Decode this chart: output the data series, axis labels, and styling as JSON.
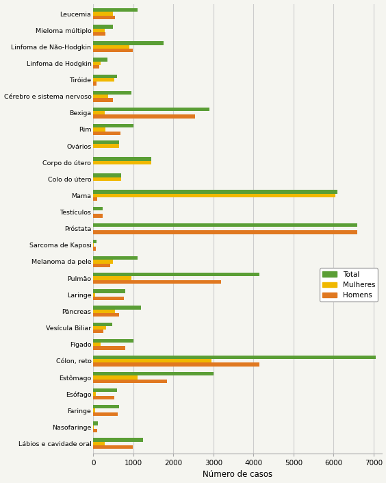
{
  "categories": [
    "Lábios e cavidade oral",
    "Nasofaringe",
    "Faringe",
    "Esófago",
    "Estômago",
    "Cólon, reto",
    "Fígado",
    "Vesícula Biliar",
    "Pâncreas",
    "Laringe",
    "Pulmão",
    "Melanoma da pele",
    "Sarcoma de Kaposi",
    "Próstata",
    "Testículos",
    "Mama",
    "Colo do útero",
    "Corpo do útero",
    "Ovários",
    "Rim",
    "Bexiga",
    "Cérebro e sistema nervoso",
    "Tiróide",
    "Linfoma de Hodgkin",
    "Linfoma de Não-Hodgkin",
    "Mieloma múltiplo",
    "Leucemia"
  ],
  "total": [
    1250,
    120,
    650,
    600,
    3000,
    7050,
    1000,
    480,
    1200,
    800,
    4150,
    1100,
    80,
    6600,
    230,
    6100,
    700,
    1450,
    650,
    1000,
    2900,
    950,
    600,
    350,
    1750,
    500,
    1100
  ],
  "mulheres": [
    280,
    20,
    50,
    60,
    1100,
    2950,
    180,
    320,
    550,
    50,
    950,
    500,
    20,
    0,
    0,
    6050,
    700,
    1450,
    650,
    300,
    280,
    380,
    530,
    180,
    900,
    280,
    500
  ],
  "homens": [
    980,
    100,
    620,
    530,
    1850,
    4150,
    800,
    260,
    650,
    760,
    3200,
    430,
    60,
    6600,
    230,
    100,
    0,
    0,
    0,
    680,
    2550,
    490,
    80,
    150,
    980,
    300,
    550
  ],
  "color_total": "#5a9e35",
  "color_mulheres": "#f0b800",
  "color_homens": "#e07820",
  "xlabel": "Número de casos",
  "xlim": [
    0,
    7200
  ],
  "xticks": [
    0,
    1000,
    2000,
    3000,
    4000,
    5000,
    6000,
    7000
  ],
  "background_color": "#f5f5f0",
  "grid_color": "#cccccc",
  "bar_height": 0.22,
  "legend_labels": [
    "Total",
    "Mulheres",
    "Homens"
  ]
}
